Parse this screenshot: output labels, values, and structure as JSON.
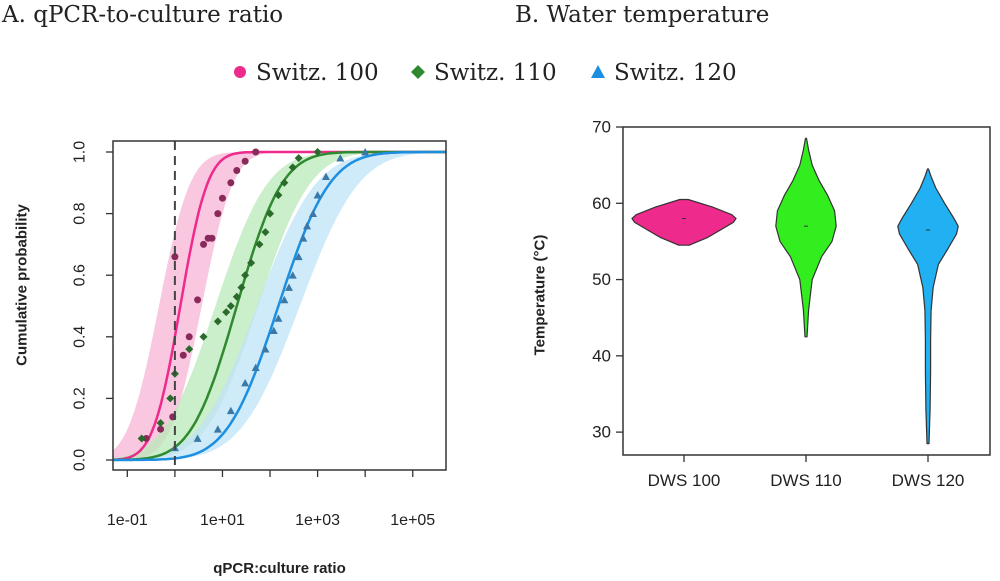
{
  "panels": {
    "a_title": "A. qPCR-to-culture ratio",
    "b_title": "B. Water temperature"
  },
  "legend": {
    "items": [
      {
        "label": "Switz. 100",
        "color": "#ef2a8d",
        "marker": "circle"
      },
      {
        "label": "Switz. 110",
        "color": "#2f8a2f",
        "marker": "diamond"
      },
      {
        "label": "Switz. 120",
        "color": "#1c8fe0",
        "marker": "triangle"
      }
    ],
    "placement": "top-center"
  },
  "chart_data": [
    {
      "type": "line",
      "panel": "A",
      "xlabel": "qPCR:culture ratio",
      "ylabel": "Cumulative probability",
      "x_scale": "log10",
      "xlim": [
        0.05,
        500000
      ],
      "ylim": [
        0,
        1
      ],
      "x_ticks": [
        0.1,
        10,
        1000,
        100000
      ],
      "x_tick_labels": [
        "1e-01",
        "1e+01",
        "1e+03",
        "1e+05"
      ],
      "y_ticks": [
        0,
        0.2,
        0.4,
        0.6,
        0.8,
        1
      ],
      "y_tick_labels": [
        "0.0",
        "0.2",
        "0.4",
        "0.6",
        "0.8",
        "1.0"
      ],
      "reference_line_x": 1,
      "grid": false,
      "series": [
        {
          "name": "Switz. 100",
          "color": "#ef2a8d",
          "band_color": "#f7b6d6",
          "fit_median": 1.3,
          "fit_sigma_log10": 0.45,
          "points": [
            [
              0.25,
              0.07
            ],
            [
              0.5,
              0.1
            ],
            [
              0.9,
              0.14
            ],
            [
              1,
              0.66
            ],
            [
              1.5,
              0.34
            ],
            [
              2,
              0.4
            ],
            [
              3,
              0.52
            ],
            [
              4,
              0.7
            ],
            [
              5,
              0.72
            ],
            [
              6,
              0.72
            ],
            [
              8,
              0.8
            ],
            [
              10,
              0.85
            ],
            [
              15,
              0.9
            ],
            [
              20,
              0.94
            ],
            [
              30,
              0.97
            ],
            [
              50,
              1.0
            ]
          ]
        },
        {
          "name": "Switz. 110",
          "color": "#2f8a2f",
          "band_color": "#b9e8b9",
          "fit_median": 20,
          "fit_sigma_log10": 0.75,
          "points": [
            [
              0.2,
              0.07
            ],
            [
              0.5,
              0.12
            ],
            [
              0.8,
              0.2
            ],
            [
              1,
              0.28
            ],
            [
              2,
              0.36
            ],
            [
              4,
              0.4
            ],
            [
              8,
              0.45
            ],
            [
              12,
              0.48
            ],
            [
              15,
              0.5
            ],
            [
              20,
              0.53
            ],
            [
              25,
              0.56
            ],
            [
              30,
              0.6
            ],
            [
              40,
              0.64
            ],
            [
              60,
              0.7
            ],
            [
              80,
              0.74
            ],
            [
              100,
              0.8
            ],
            [
              150,
              0.86
            ],
            [
              200,
              0.9
            ],
            [
              300,
              0.95
            ],
            [
              400,
              0.98
            ],
            [
              1000,
              1.0
            ]
          ]
        },
        {
          "name": "Switz. 120",
          "color": "#1c8fe0",
          "band_color": "#bfe3f7",
          "fit_median": 150,
          "fit_sigma_log10": 0.85,
          "points": [
            [
              1,
              0.04
            ],
            [
              3,
              0.07
            ],
            [
              8,
              0.1
            ],
            [
              15,
              0.16
            ],
            [
              30,
              0.25
            ],
            [
              50,
              0.3
            ],
            [
              80,
              0.36
            ],
            [
              120,
              0.42
            ],
            [
              150,
              0.46
            ],
            [
              200,
              0.52
            ],
            [
              250,
              0.56
            ],
            [
              300,
              0.6
            ],
            [
              400,
              0.66
            ],
            [
              500,
              0.72
            ],
            [
              600,
              0.76
            ],
            [
              800,
              0.8
            ],
            [
              1000,
              0.86
            ],
            [
              1500,
              0.92
            ],
            [
              3000,
              0.98
            ],
            [
              10000,
              1.0
            ]
          ]
        }
      ]
    },
    {
      "type": "violin",
      "panel": "B",
      "xlabel": "",
      "ylabel": "Temperature (°C)",
      "ylim": [
        27,
        70
      ],
      "y_ticks": [
        30,
        40,
        50,
        60,
        70
      ],
      "categories": [
        "DWS 100",
        "DWS 110",
        "DWS 120"
      ],
      "series": [
        {
          "name": "DWS 100",
          "color": "#ef2a8d",
          "min": 54.5,
          "max": 60.5,
          "median": 58,
          "profile": [
            [
              54.5,
              0.1
            ],
            [
              55.5,
              0.45
            ],
            [
              56.5,
              0.7
            ],
            [
              57.5,
              0.95
            ],
            [
              58,
              1.0
            ],
            [
              58.5,
              0.92
            ],
            [
              59.5,
              0.55
            ],
            [
              60.5,
              0.08
            ]
          ]
        },
        {
          "name": "DWS 110",
          "color": "#33ee1f",
          "min": 42.5,
          "max": 68.5,
          "median": 57,
          "profile": [
            [
              42.5,
              0.02
            ],
            [
              46,
              0.05
            ],
            [
              50,
              0.12
            ],
            [
              53,
              0.3
            ],
            [
              55,
              0.5
            ],
            [
              57,
              0.58
            ],
            [
              59,
              0.55
            ],
            [
              61,
              0.42
            ],
            [
              63,
              0.25
            ],
            [
              65,
              0.12
            ],
            [
              67,
              0.05
            ],
            [
              68.5,
              0.01
            ]
          ]
        },
        {
          "name": "DWS 120",
          "color": "#21b0f2",
          "min": 28.5,
          "max": 64.5,
          "median": 56.5,
          "profile": [
            [
              28.5,
              0.02
            ],
            [
              33,
              0.04
            ],
            [
              38,
              0.05
            ],
            [
              42,
              0.05
            ],
            [
              46,
              0.06
            ],
            [
              49,
              0.1
            ],
            [
              52,
              0.2
            ],
            [
              54,
              0.38
            ],
            [
              56,
              0.55
            ],
            [
              57,
              0.58
            ],
            [
              58,
              0.5
            ],
            [
              60,
              0.32
            ],
            [
              62,
              0.15
            ],
            [
              63.5,
              0.06
            ],
            [
              64.5,
              0.01
            ]
          ]
        }
      ]
    }
  ]
}
